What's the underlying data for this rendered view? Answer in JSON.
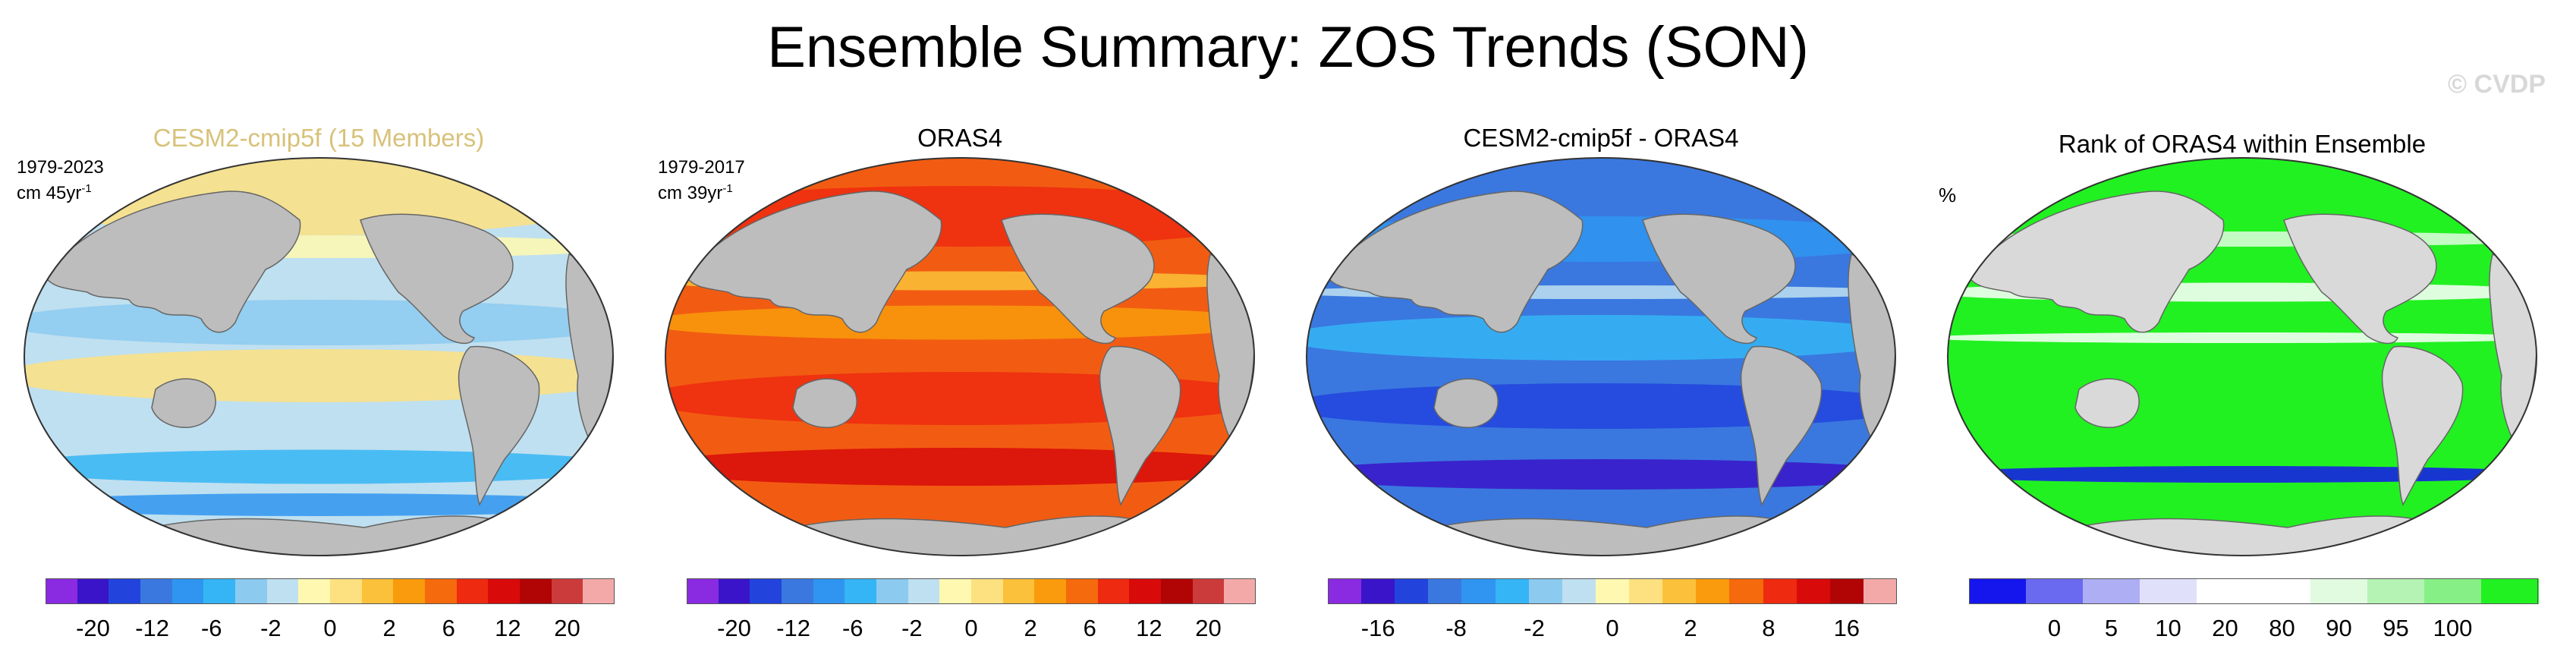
{
  "page": {
    "title": "Ensemble Summary: ZOS Trends (SON)",
    "watermark": "© CVDP"
  },
  "chart_data": [
    {
      "type": "heatmap",
      "title": "CESM2-cmip5f (15 Members)",
      "subtitle_line1": "1979-2023",
      "subtitle_units": "cm 45yr",
      "subtitle_exp": "-1",
      "title_color": "#d8c27a",
      "colorbar": {
        "colors": [
          "#8a2be2",
          "#3a14c8",
          "#2244dd",
          "#3a78e0",
          "#2f95f0",
          "#35b5f5",
          "#8ccaf0",
          "#bfe0f0",
          "#fff8b0",
          "#fde180",
          "#fcc13a",
          "#f99b0c",
          "#f46a0c",
          "#ee2a10",
          "#d80a0a",
          "#b10505",
          "#cc3b3b",
          "#f4a9a9"
        ],
        "tick_labels": [
          "-20",
          "-12",
          "-6",
          "-2",
          "0",
          "2",
          "6",
          "12",
          "20"
        ]
      }
    },
    {
      "type": "heatmap",
      "title": "ORAS4",
      "subtitle_line1": "1979-2017",
      "subtitle_units": "cm 39yr",
      "subtitle_exp": "-1",
      "title_color": "#000000",
      "colorbar": {
        "colors": [
          "#8a2be2",
          "#3a14c8",
          "#2244dd",
          "#3a78e0",
          "#2f95f0",
          "#35b5f5",
          "#8ccaf0",
          "#bfe0f0",
          "#fff8b0",
          "#fde180",
          "#fcc13a",
          "#f99b0c",
          "#f46a0c",
          "#ee2a10",
          "#d80a0a",
          "#b10505",
          "#cc3b3b",
          "#f4a9a9"
        ],
        "tick_labels": [
          "-20",
          "-12",
          "-6",
          "-2",
          "0",
          "2",
          "6",
          "12",
          "20"
        ]
      }
    },
    {
      "type": "heatmap",
      "title": "CESM2-cmip5f - ORAS4",
      "title_color": "#000000",
      "colorbar": {
        "colors": [
          "#8a2be2",
          "#3a14c8",
          "#2244dd",
          "#3a78e0",
          "#2f95f0",
          "#35b5f5",
          "#8ccaf0",
          "#bfe0f0",
          "#fff8b0",
          "#fde180",
          "#fcc13a",
          "#f99b0c",
          "#f46a0c",
          "#ee2a10",
          "#d80a0a",
          "#b10505",
          "#f4a9a9"
        ],
        "tick_labels": [
          "-16",
          "-8",
          "-2",
          "0",
          "2",
          "8",
          "16"
        ]
      }
    },
    {
      "type": "heatmap",
      "title": "Rank of ORAS4 within Ensemble",
      "units": "%",
      "title_color": "#000000",
      "colorbar": {
        "colors": [
          "#1515ee",
          "#6a6af0",
          "#aeaef4",
          "#e0e0fa",
          "#ffffff",
          "#ffffff",
          "#e0fbe0",
          "#b4f3b4",
          "#86f086",
          "#21f121"
        ],
        "tick_labels": [
          "0",
          "5",
          "10",
          "20",
          "80",
          "90",
          "95",
          "100"
        ]
      }
    }
  ]
}
